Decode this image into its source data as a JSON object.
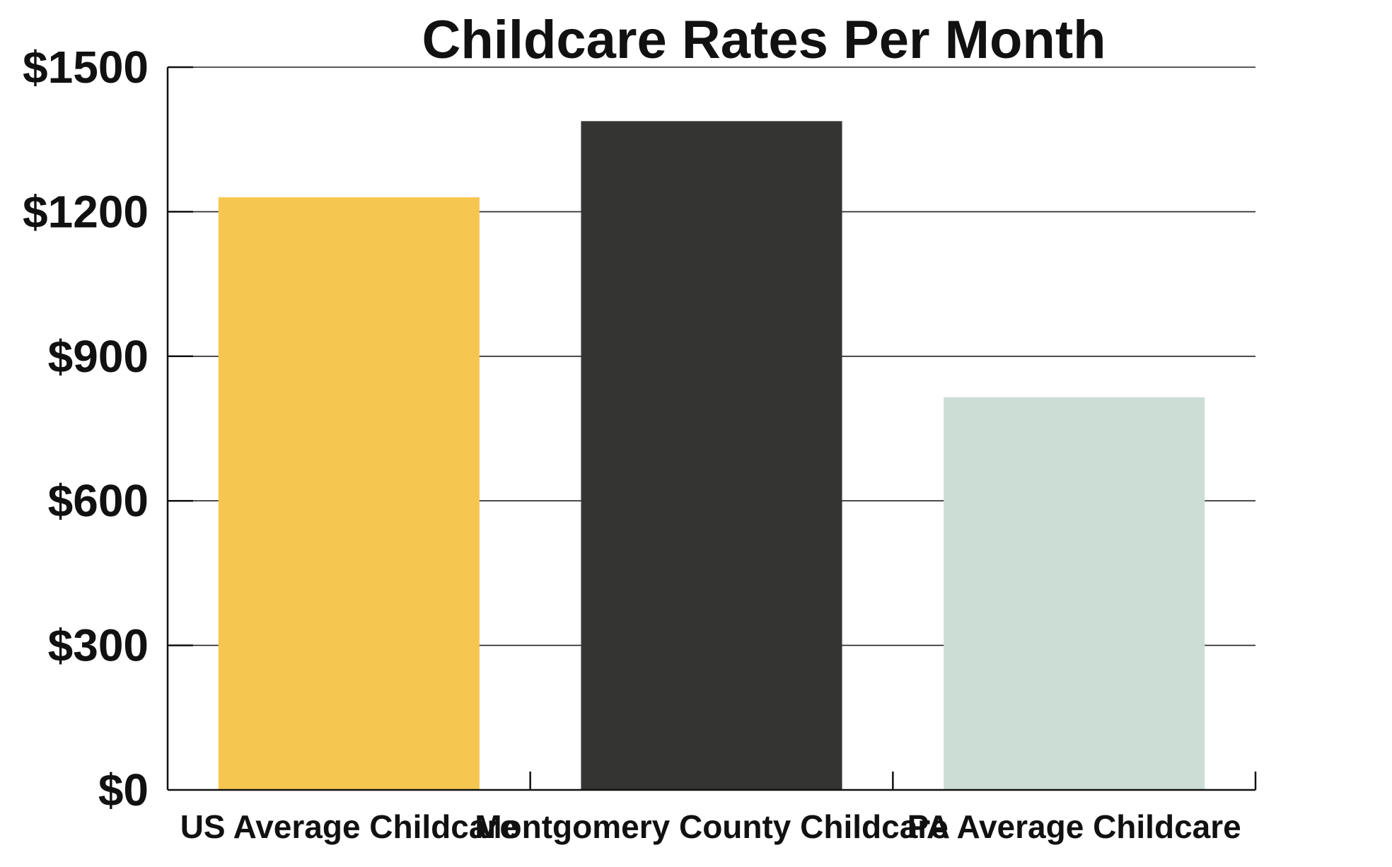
{
  "chart_data": {
    "type": "bar",
    "title": "Childcare Rates Per Month",
    "xlabel": "",
    "ylabel": "",
    "categories": [
      "US Average Childcare",
      "Montgomery County Childcare",
      "PA Average Childcare"
    ],
    "values": [
      1230,
      1388,
      815
    ],
    "colors": [
      "#F6C750",
      "#343533",
      "#CCDDD5"
    ],
    "ylim": [
      0,
      1500
    ],
    "yticks": [
      0,
      300,
      600,
      900,
      1200,
      1500
    ],
    "ytick_labels": [
      "$0",
      "$300",
      "$600",
      "$900",
      "$1200",
      "$1500"
    ],
    "grid": true,
    "legend": "none"
  }
}
